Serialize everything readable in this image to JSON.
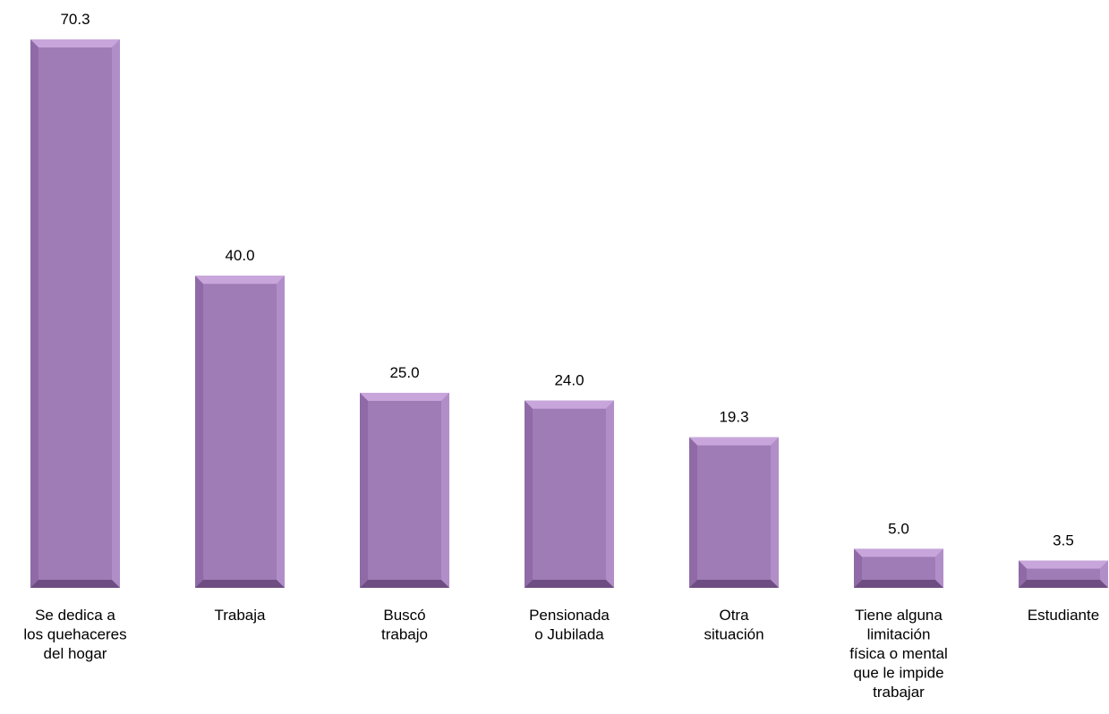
{
  "chart_data": {
    "type": "bar",
    "title": "",
    "xlabel": "",
    "ylabel": "",
    "ylim": [
      0,
      70.3
    ],
    "grid": false,
    "legend": "none",
    "categories": [
      "Se dedica a los quehaceres del hogar",
      "Trabaja",
      "Buscó trabajo",
      "Pensionada o Jubilada",
      "Otra situación",
      "Tiene alguna limitación física o mental que le impide trabajar",
      "Estudiante"
    ],
    "category_lines": [
      [
        "Se dedica a",
        "los quehaceres",
        "del hogar"
      ],
      [
        "Trabaja"
      ],
      [
        "Buscó",
        "trabajo"
      ],
      [
        "Pensionada",
        "o Jubilada"
      ],
      [
        "Otra",
        "situación"
      ],
      [
        "Tiene alguna",
        "limitación",
        "física o mental",
        "que le impide",
        "trabajar"
      ],
      [
        "Estudiante"
      ]
    ],
    "values": [
      70.3,
      40.0,
      25.0,
      24.0,
      19.3,
      5.0,
      3.5
    ],
    "value_labels": [
      "70.3",
      "40.0",
      "25.0",
      "24.0",
      "19.3",
      "5.0",
      "3.5"
    ],
    "colors": {
      "bar_face": "#a07cb6",
      "bar_top": "#c8a6dc",
      "bar_left": "#8f6aa6",
      "bar_right": "#b18ec8",
      "bar_bottom": "#6d4d82"
    }
  }
}
